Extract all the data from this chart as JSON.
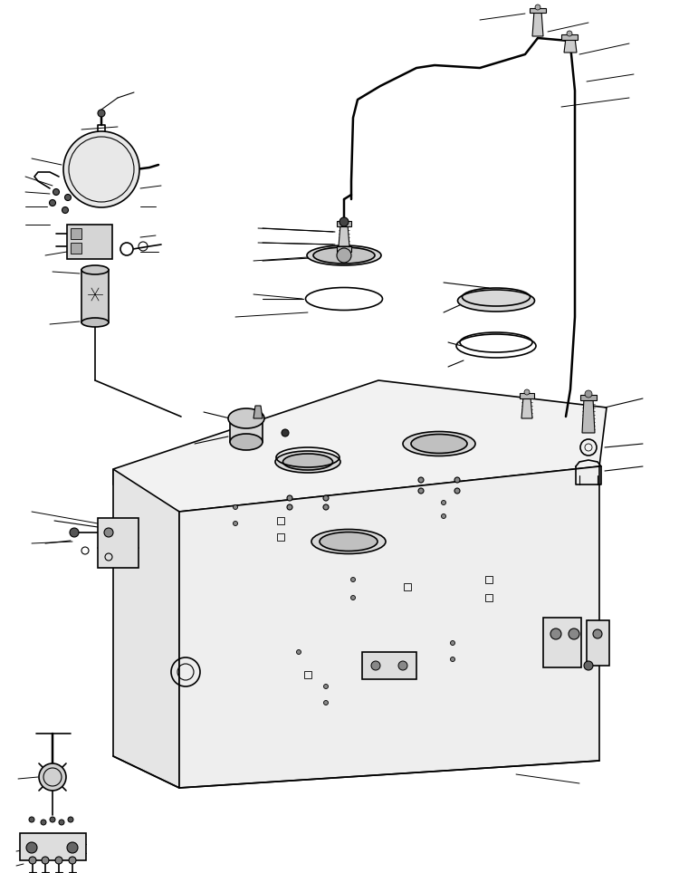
{
  "bg_color": "#ffffff",
  "line_color": "#000000",
  "line_width": 1.2,
  "figsize": [
    7.5,
    9.64
  ],
  "dpi": 100
}
